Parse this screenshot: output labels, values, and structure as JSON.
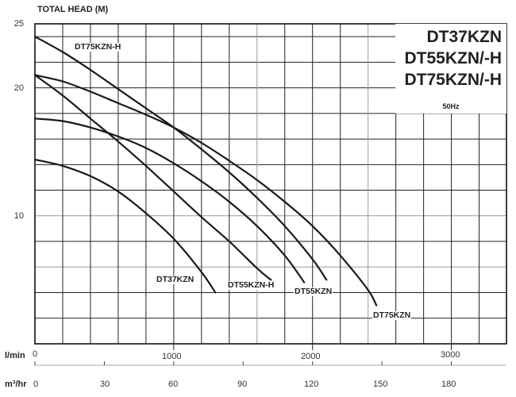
{
  "chart_data": {
    "type": "line",
    "title": "DT37KZN / DT55KZN/-H / DT75KZN/-H",
    "title_lines": [
      "DT37KZN",
      "DT55KZN/-H",
      "DT75KZN/-H"
    ],
    "subtitle": "50Hz",
    "ylabel": "TOTAL HEAD (M)",
    "xlabel": "l/min",
    "xlabel_secondary": "m³/hr",
    "ylim": [
      0,
      25
    ],
    "xlim": [
      0,
      3400
    ],
    "grid": true,
    "y_ticks": [
      10,
      20,
      25
    ],
    "y_grid_step": 2,
    "x_ticks": [
      0,
      1000,
      2000,
      3000
    ],
    "x_grid_step": 200,
    "x2_ticks": [
      0,
      30,
      60,
      90,
      120,
      150,
      180
    ],
    "legend": "inline labels",
    "series": [
      {
        "name": "DT75KZN-H",
        "points": [
          [
            0,
            24.0
          ],
          [
            200,
            22.8
          ],
          [
            400,
            21.4
          ],
          [
            600,
            19.9
          ],
          [
            800,
            18.4
          ],
          [
            1000,
            16.9
          ],
          [
            1200,
            15.2
          ],
          [
            1400,
            13.4
          ],
          [
            1600,
            11.4
          ],
          [
            1800,
            9.2
          ],
          [
            2000,
            6.6
          ],
          [
            2100,
            5.0
          ]
        ]
      },
      {
        "name": "DT75KZN",
        "points": [
          [
            0,
            21.0
          ],
          [
            200,
            20.5
          ],
          [
            400,
            19.7
          ],
          [
            600,
            18.8
          ],
          [
            800,
            17.9
          ],
          [
            1000,
            16.9
          ],
          [
            1200,
            15.7
          ],
          [
            1400,
            14.3
          ],
          [
            1600,
            12.8
          ],
          [
            1800,
            11.1
          ],
          [
            2000,
            9.2
          ],
          [
            2200,
            6.9
          ],
          [
            2400,
            4.2
          ],
          [
            2460,
            3.0
          ]
        ]
      },
      {
        "name": "DT55KZN-H",
        "points": [
          [
            0,
            21.0
          ],
          [
            200,
            19.4
          ],
          [
            400,
            17.6
          ],
          [
            600,
            15.8
          ],
          [
            800,
            13.9
          ],
          [
            1000,
            11.9
          ],
          [
            1200,
            9.9
          ],
          [
            1400,
            8.0
          ],
          [
            1600,
            5.9
          ],
          [
            1700,
            5.0
          ]
        ]
      },
      {
        "name": "DT55KZN",
        "points": [
          [
            0,
            17.6
          ],
          [
            200,
            17.4
          ],
          [
            400,
            16.9
          ],
          [
            600,
            16.2
          ],
          [
            800,
            15.3
          ],
          [
            1000,
            14.1
          ],
          [
            1200,
            12.7
          ],
          [
            1400,
            11.1
          ],
          [
            1600,
            9.2
          ],
          [
            1800,
            6.9
          ],
          [
            1940,
            4.8
          ]
        ]
      },
      {
        "name": "DT37KZN",
        "points": [
          [
            0,
            14.4
          ],
          [
            200,
            13.9
          ],
          [
            400,
            13.1
          ],
          [
            600,
            11.9
          ],
          [
            800,
            10.2
          ],
          [
            1000,
            8.2
          ],
          [
            1200,
            5.6
          ],
          [
            1300,
            4.0
          ]
        ]
      }
    ],
    "curve_labels": [
      {
        "text": "DT75KZN-H",
        "x": 290,
        "y": 23.3
      },
      {
        "text": "DT37KZN",
        "x": 815,
        "y": 5.2
      },
      {
        "text": "DT55KZN-H",
        "x": 1385,
        "y": 4.6
      },
      {
        "text": "DT55KZN",
        "x": 1885,
        "y": 4.0
      },
      {
        "text": "DT75KZN",
        "x": 2445,
        "y": 2.3
      }
    ]
  },
  "axis": {
    "y_title": "TOTAL HEAD (M)",
    "y_labels": [
      "25",
      "20",
      "10"
    ],
    "x_unit": "l/min",
    "x2_unit": "m³/hr",
    "x_labels": [
      "0",
      "1000",
      "2000",
      "3000"
    ],
    "x2_labels": [
      "0",
      "30",
      "60",
      "90",
      "120",
      "150",
      "180"
    ]
  },
  "title_box": {
    "line1": "DT37KZN",
    "line2": "DT55KZN/-H",
    "line3": "DT75KZN/-H",
    "freq": "50Hz"
  }
}
